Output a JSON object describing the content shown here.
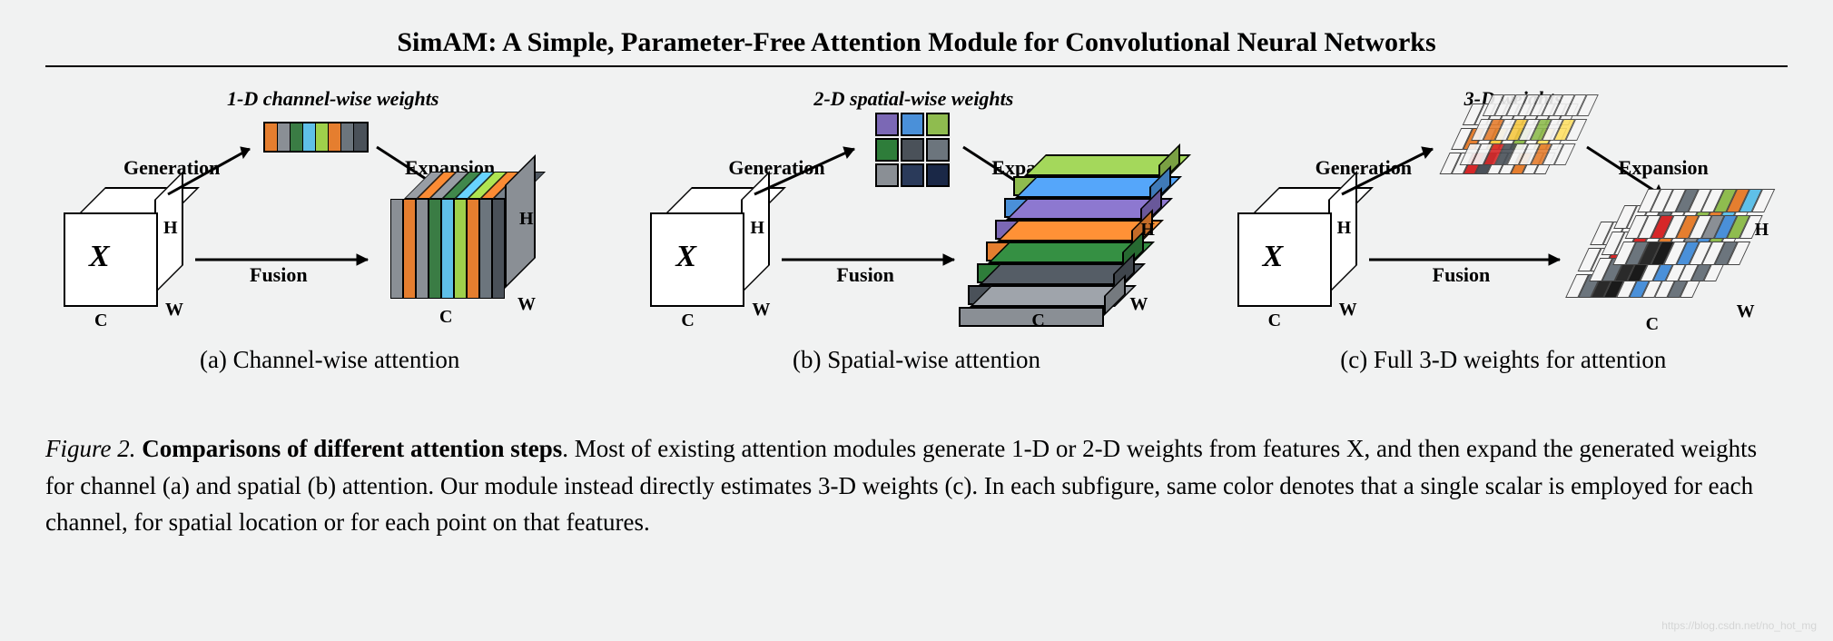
{
  "title": "SimAM: A Simple, Parameter-Free Attention Module for Convolutional Neural Networks",
  "labels": {
    "generation": "Generation",
    "expansion": "Expansion",
    "fusion": "Fusion",
    "C": "C",
    "H": "H",
    "W": "W",
    "X": "X"
  },
  "panel_a": {
    "weights_title": "1-D channel-wise weights",
    "caption": "(a) Channel-wise attention",
    "strip_colors": [
      "#e57e2f",
      "#8a8f95",
      "#3a7c44",
      "#5fc0e8",
      "#9fd04b",
      "#e57e2f",
      "#6c757d",
      "#4a5159"
    ],
    "output_slice_colors": [
      "#8a8f95",
      "#e57e2f",
      "#8a8f95",
      "#3a7c44",
      "#5fc0e8",
      "#9fd04b",
      "#e57e2f",
      "#6c757d",
      "#4a5159"
    ],
    "output_side_color": "#8a8f95"
  },
  "panel_b": {
    "weights_title": "2-D spatial-wise weights",
    "caption": "(b) Spatial-wise attention",
    "grid_colors": [
      "#7b68b5",
      "#4a90d9",
      "#8fbc4f",
      "#2e7d3a",
      "#4a5159",
      "#6c757d",
      "#8a8f95",
      "#2a3a5a",
      "#1a2847"
    ],
    "plane_colors": [
      "#8fbc4f",
      "#4a90d9",
      "#7b68b5",
      "#e57e2f",
      "#2e7d3a",
      "#4a5159",
      "#8a8f95"
    ]
  },
  "panel_c": {
    "weights_title": "3-D weights",
    "caption": "(c) Full 3-D weights for attention",
    "top_sheet_rows": [
      [
        "#f5f5f5",
        "#f5f5f5",
        "#f5f5f5",
        "#f5f5f5",
        "#f5f5f5",
        "#f5f5f5",
        "#f5f5f5",
        "#f5f5f5",
        "#f5f5f5"
      ],
      [
        "#f5f5f5",
        "#e57e2f",
        "#f5f5f5",
        "#f5c842",
        "#f5f5f5",
        "#8fbc4f",
        "#f5f5f5",
        "#ffe066",
        "#f5f5f5"
      ],
      [
        "#f5f5f5",
        "#f5f5f5",
        "#d62728",
        "#4a5159",
        "#f5f5f5",
        "#f5f5f5",
        "#e57e2f",
        "#f5f5f5",
        "#f5f5f5"
      ]
    ],
    "output_sheet_rows": [
      [
        "#f5f5f5",
        "#f5f5f5",
        "#f5f5f5",
        "#6c757d",
        "#f5f5f5",
        "#f5f5f5",
        "#8fbc4f",
        "#e57e2f",
        "#5fc0e8",
        "#f5f5f5"
      ],
      [
        "#f5f5f5",
        "#f5f5f5",
        "#d62728",
        "#f5f5f5",
        "#e57e2f",
        "#f5f5f5",
        "#8a8f95",
        "#4a90d9",
        "#8fbc4f",
        "#f5f5f5"
      ],
      [
        "#f5f5f5",
        "#6c757d",
        "#2a2a2a",
        "#1a1a1a",
        "#f5f5f5",
        "#4a90d9",
        "#f5f5f5",
        "#f5f5f5",
        "#6c757d",
        "#f5f5f5"
      ]
    ]
  },
  "figure_caption": {
    "prefix": "Figure 2.",
    "bold": " Comparisons of different attention steps",
    "rest": ". Most of existing attention modules generate 1-D or 2-D weights from features X, and then expand the generated weights for channel (a) and spatial (b) attention. Our module instead directly estimates 3-D weights (c). In each subfigure, same color denotes that a single scalar is employed for each channel, for spatial location or for each point on that features."
  },
  "watermark": "https://blog.csdn.net/no_hot_mg",
  "colors": {
    "background": "#f1f2f2",
    "text": "#000000",
    "border": "#000000"
  }
}
